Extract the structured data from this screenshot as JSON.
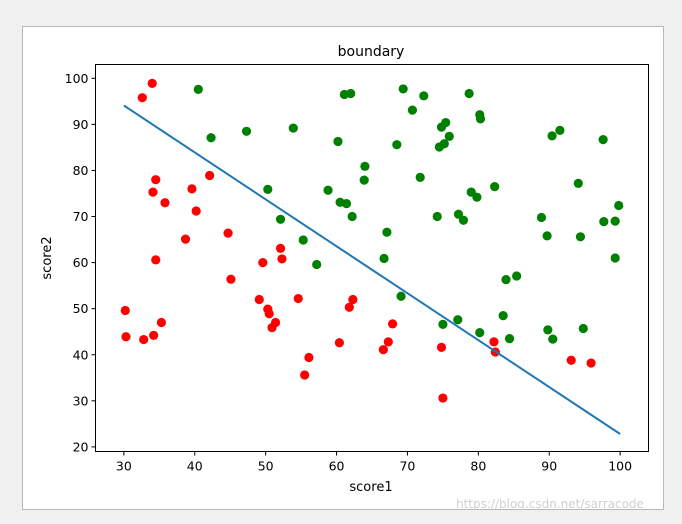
{
  "watermark": "https://blog.csdn.net/sarracode",
  "chart_data": {
    "type": "scatter",
    "title": "boundary",
    "xlabel": "score1",
    "ylabel": "score2",
    "xlim": [
      26,
      104
    ],
    "ylim": [
      19,
      103
    ],
    "xticks": [
      30,
      40,
      50,
      60,
      70,
      80,
      90,
      100
    ],
    "yticks": [
      20,
      30,
      40,
      50,
      60,
      70,
      80,
      90,
      100
    ],
    "grid": false,
    "colors": {
      "negative": "#ff0000",
      "positive": "#008000",
      "line": "#1f77b4"
    },
    "series": [
      {
        "key": "negative",
        "color": "#ff0000",
        "points": [
          [
            34.0,
            98.9
          ],
          [
            32.6,
            95.8
          ],
          [
            34.5,
            78.0
          ],
          [
            34.1,
            75.3
          ],
          [
            35.8,
            73.0
          ],
          [
            39.6,
            76.0
          ],
          [
            40.2,
            71.2
          ],
          [
            42.1,
            78.9
          ],
          [
            38.7,
            65.1
          ],
          [
            44.7,
            66.4
          ],
          [
            34.5,
            60.6
          ],
          [
            45.1,
            56.4
          ],
          [
            30.2,
            49.6
          ],
          [
            30.3,
            43.9
          ],
          [
            32.8,
            43.3
          ],
          [
            34.2,
            44.2
          ],
          [
            35.3,
            47.0
          ],
          [
            49.6,
            60.0
          ],
          [
            52.1,
            63.1
          ],
          [
            52.3,
            60.8
          ],
          [
            49.1,
            52.0
          ],
          [
            50.3,
            49.9
          ],
          [
            50.5,
            48.9
          ],
          [
            51.4,
            47.0
          ],
          [
            50.9,
            45.9
          ],
          [
            54.6,
            52.2
          ],
          [
            56.1,
            39.4
          ],
          [
            55.5,
            35.6
          ],
          [
            60.4,
            42.6
          ],
          [
            61.8,
            50.3
          ],
          [
            62.3,
            52.0
          ],
          [
            66.6,
            41.1
          ],
          [
            67.3,
            42.8
          ],
          [
            67.9,
            46.7
          ],
          [
            74.8,
            41.6
          ],
          [
            75.0,
            30.6
          ],
          [
            82.2,
            42.8
          ],
          [
            82.4,
            40.6
          ],
          [
            93.1,
            38.8
          ],
          [
            95.9,
            38.2
          ]
        ]
      },
      {
        "key": "positive",
        "color": "#008000",
        "points": [
          [
            40.5,
            97.6
          ],
          [
            42.3,
            87.1
          ],
          [
            47.3,
            88.5
          ],
          [
            53.9,
            89.2
          ],
          [
            50.3,
            75.9
          ],
          [
            52.1,
            69.4
          ],
          [
            55.3,
            64.9
          ],
          [
            57.2,
            59.6
          ],
          [
            58.8,
            75.7
          ],
          [
            60.2,
            86.3
          ],
          [
            60.5,
            73.1
          ],
          [
            61.1,
            96.5
          ],
          [
            62.0,
            96.7
          ],
          [
            61.4,
            72.8
          ],
          [
            62.2,
            70.0
          ],
          [
            64.0,
            80.9
          ],
          [
            63.9,
            77.9
          ],
          [
            66.7,
            60.9
          ],
          [
            67.1,
            66.6
          ],
          [
            68.5,
            85.6
          ],
          [
            69.1,
            52.7
          ],
          [
            69.4,
            97.7
          ],
          [
            70.7,
            93.1
          ],
          [
            71.8,
            78.5
          ],
          [
            72.3,
            96.2
          ],
          [
            74.2,
            70.0
          ],
          [
            74.5,
            85.1
          ],
          [
            74.8,
            89.4
          ],
          [
            75.2,
            85.8
          ],
          [
            75.4,
            90.4
          ],
          [
            75.9,
            87.4
          ],
          [
            75.0,
            46.6
          ],
          [
            77.1,
            47.6
          ],
          [
            77.2,
            70.5
          ],
          [
            77.9,
            69.2
          ],
          [
            78.7,
            96.7
          ],
          [
            79.0,
            75.3
          ],
          [
            79.8,
            74.2
          ],
          [
            80.2,
            92.1
          ],
          [
            80.3,
            91.2
          ],
          [
            80.2,
            44.8
          ],
          [
            82.3,
            76.5
          ],
          [
            83.5,
            48.5
          ],
          [
            83.9,
            56.3
          ],
          [
            84.4,
            43.5
          ],
          [
            85.4,
            57.1
          ],
          [
            88.9,
            69.8
          ],
          [
            89.7,
            65.8
          ],
          [
            89.8,
            45.4
          ],
          [
            90.4,
            87.5
          ],
          [
            90.5,
            43.4
          ],
          [
            91.5,
            88.7
          ],
          [
            94.1,
            77.2
          ],
          [
            94.4,
            65.6
          ],
          [
            94.8,
            45.7
          ],
          [
            97.6,
            86.7
          ],
          [
            97.7,
            68.9
          ],
          [
            99.3,
            69.0
          ],
          [
            99.3,
            61.0
          ],
          [
            99.8,
            72.4
          ]
        ]
      }
    ],
    "line": {
      "x": [
        30.0,
        100.0
      ],
      "y": [
        94.1,
        22.8
      ]
    }
  }
}
